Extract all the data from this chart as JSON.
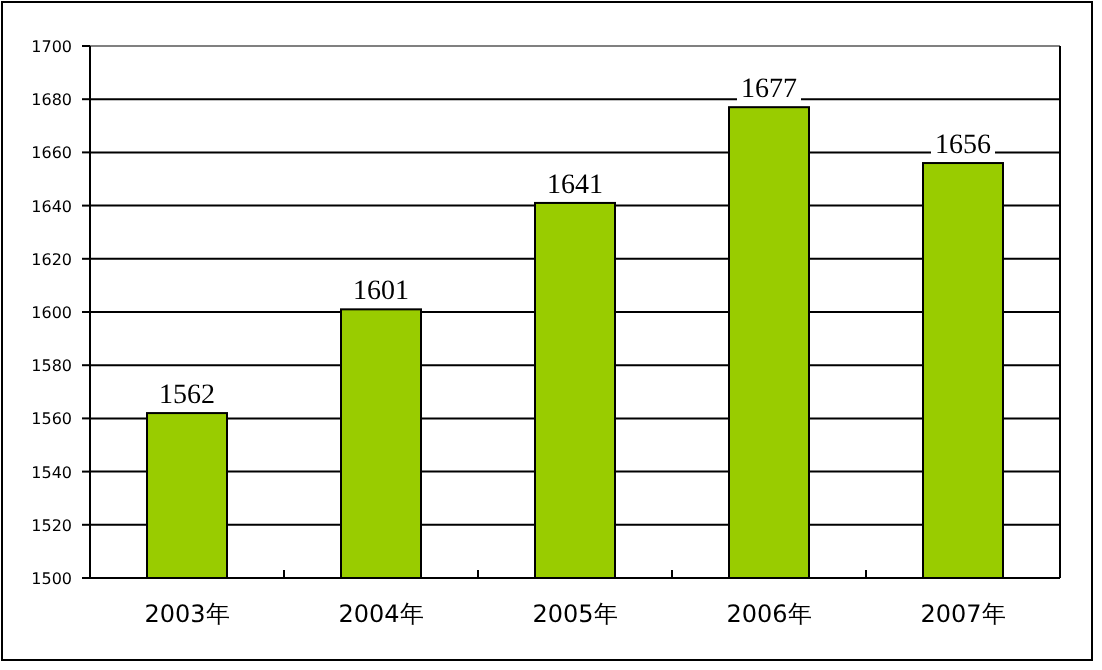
{
  "chart_data": {
    "type": "bar",
    "categories": [
      "2003年",
      "2004年",
      "2005年",
      "2006年",
      "2007年"
    ],
    "values": [
      1562,
      1601,
      1641,
      1677,
      1656
    ],
    "color": "#99cc00",
    "ylim": [
      1500,
      1700
    ],
    "yticks": [
      1500,
      1520,
      1540,
      1560,
      1580,
      1600,
      1620,
      1640,
      1660,
      1680,
      1700
    ],
    "grid": "y",
    "data_labels": true
  }
}
